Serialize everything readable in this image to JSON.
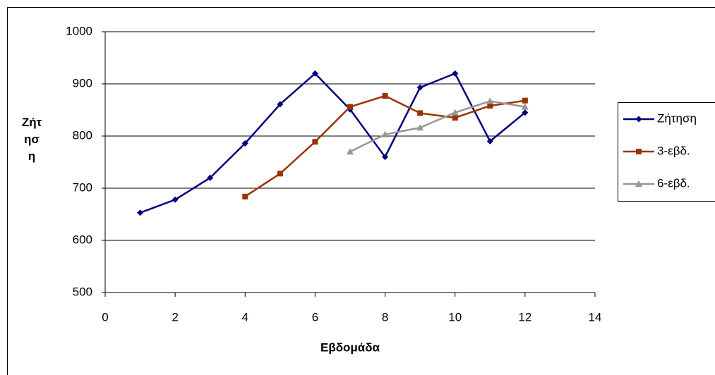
{
  "chart_data": {
    "type": "line",
    "x_label": "Εβδομάδα",
    "y_label": "Ζήτηση",
    "x": [
      1,
      2,
      3,
      4,
      5,
      6,
      7,
      8,
      9,
      10,
      11,
      12
    ],
    "series": [
      {
        "name": "Ζήτηση",
        "color": "#000080",
        "marker": "diamond",
        "values": [
          653,
          678,
          720,
          786,
          861,
          920,
          851,
          760,
          893,
          920,
          790,
          845
        ]
      },
      {
        "name": "3-εβδ.",
        "color": "#993300",
        "marker": "square",
        "values": [
          null,
          null,
          null,
          684,
          728,
          789,
          856,
          877,
          844,
          835,
          858,
          868
        ]
      },
      {
        "name": "6-εβδ.",
        "color": "#969696",
        "marker": "triangle",
        "values": [
          null,
          null,
          null,
          null,
          null,
          null,
          770,
          803,
          816,
          845,
          867,
          856
        ]
      }
    ],
    "xlim": [
      0,
      14
    ],
    "xticks": [
      0,
      2,
      4,
      6,
      8,
      10,
      12,
      14
    ],
    "ylim": [
      500,
      1000
    ],
    "yticks": [
      500,
      600,
      700,
      800,
      900,
      1000
    ],
    "grid": true,
    "legend": "right"
  }
}
